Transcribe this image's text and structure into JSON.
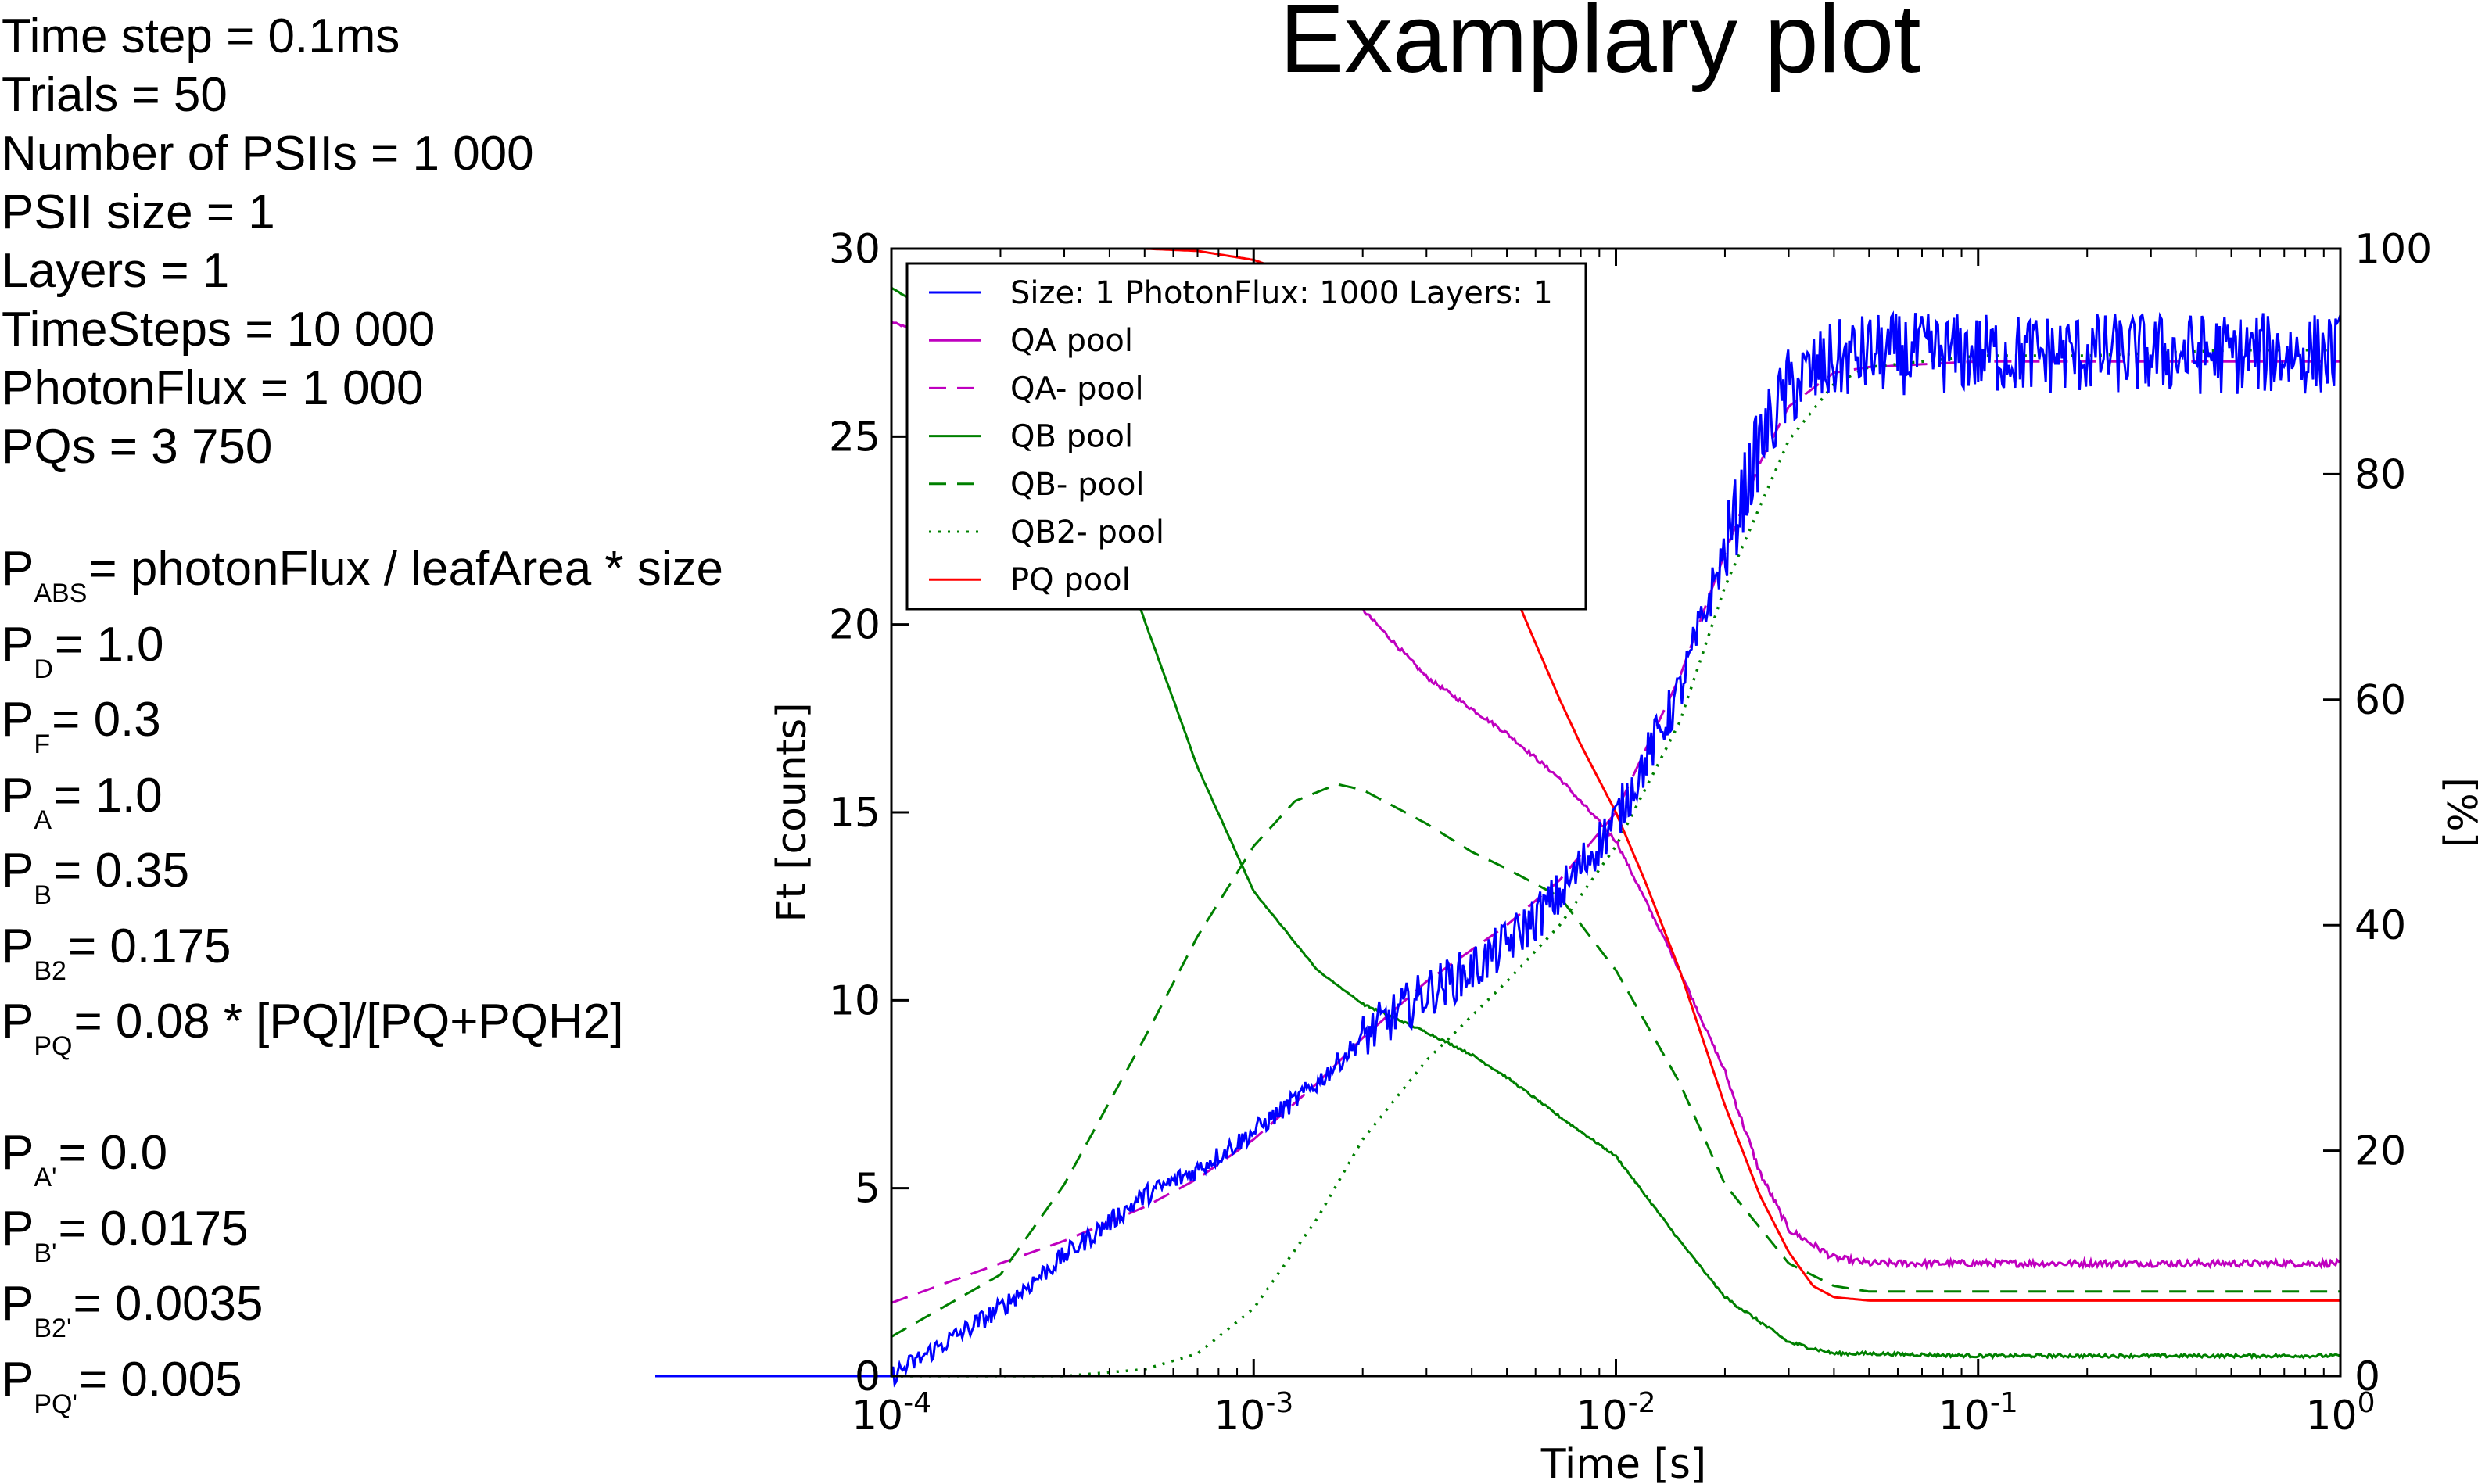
{
  "params": {
    "simulation": [
      "Time step = 0.1ms",
      "Trials = 50",
      "Number of PSIIs = 1 000",
      "PSII size = 1",
      "Layers = 1",
      "TimeSteps = 10 000",
      "PhotonFlux = 1 000",
      "PQs = 3 750"
    ],
    "probabilities": [
      {
        "sym": "P",
        "sub": "ABS",
        "expr": "= photonFlux / leafArea * size"
      },
      {
        "sym": "P",
        "sub": "D",
        "expr": "= 1.0"
      },
      {
        "sym": "P",
        "sub": "F",
        "expr": "= 0.3"
      },
      {
        "sym": "P",
        "sub": "A",
        "expr": "= 1.0"
      },
      {
        "sym": "P",
        "sub": "B",
        "expr": "= 0.35"
      },
      {
        "sym": "P",
        "sub": "B2",
        "expr": "= 0.175"
      },
      {
        "sym": "P",
        "sub": "PQ",
        "expr": "= 0.08 * [PQ]/[PQ+PQH2]"
      }
    ],
    "reverse_probabilities": [
      {
        "sym": "P",
        "sub": "A'",
        "expr": "= 0.0"
      },
      {
        "sym": "P",
        "sub": "B'",
        "expr": "= 0.0175"
      },
      {
        "sym": "P",
        "sub": "B2'",
        "expr": "= 0.0035"
      },
      {
        "sym": "P",
        "sub": "PQ'",
        "expr": "= 0.005"
      }
    ]
  },
  "chart_data": {
    "type": "line",
    "title": "Examplary plot",
    "xlabel": "Time [s]",
    "ylabel": "Ft [counts]",
    "y2label": "[%]",
    "xscale": "log",
    "xlim": [
      0.0001,
      1
    ],
    "ylim": [
      0,
      30
    ],
    "y2lim": [
      0,
      100
    ],
    "x_ticks": [
      {
        "base": "10",
        "exp": "-4"
      },
      {
        "base": "10",
        "exp": "-3"
      },
      {
        "base": "10",
        "exp": "-2"
      },
      {
        "base": "10",
        "exp": "-1"
      },
      {
        "base": "10",
        "exp": "0"
      }
    ],
    "y_ticks": [
      "0",
      "5",
      "10",
      "15",
      "20",
      "25",
      "30"
    ],
    "y2_ticks": [
      "0",
      "20",
      "40",
      "60",
      "80",
      "100"
    ],
    "legend_position": "top-left",
    "series": [
      {
        "name": "Size: 1 PhotonFlux: 1000 Layers: 1",
        "axis": "left",
        "color": "#0000ff",
        "style": "solid",
        "noise": 1.1,
        "x": [
          0.0001,
          0.0002,
          0.0003,
          0.0005,
          0.0007,
          0.001,
          0.0015,
          0.002,
          0.003,
          0.004,
          0.005,
          0.007,
          0.01,
          0.015,
          0.02,
          0.025,
          0.03,
          0.04,
          0.05,
          0.1,
          0.2,
          0.5,
          1.0
        ],
        "y": [
          0.0,
          1.8,
          3.2,
          4.8,
          5.5,
          6.5,
          7.8,
          9.0,
          10.2,
          10.8,
          11.5,
          12.8,
          14.8,
          18.2,
          22.0,
          24.8,
          26.3,
          27.0,
          27.2,
          27.2,
          27.2,
          27.2,
          27.2
        ]
      },
      {
        "name": "QA pool",
        "axis": "right",
        "color": "#bf00bf",
        "style": "solid",
        "noise": 0.3,
        "x": [
          0.0001,
          0.0002,
          0.0003,
          0.0005,
          0.0007,
          0.001,
          0.0015,
          0.002,
          0.003,
          0.005,
          0.007,
          0.01,
          0.015,
          0.02,
          0.025,
          0.03,
          0.04,
          0.05,
          0.1,
          0.2,
          0.5,
          1.0
        ],
        "y": [
          93.5,
          90.0,
          88.0,
          85.0,
          82.5,
          79.0,
          73.0,
          68.0,
          62.0,
          57.0,
          53.0,
          47.5,
          36.0,
          27.0,
          18.0,
          13.0,
          10.5,
          10.0,
          10.0,
          10.0,
          10.0,
          10.0
        ]
      },
      {
        "name": "QA- pool",
        "axis": "right",
        "color": "#bf00bf",
        "style": "dashed",
        "x": [
          0.0001,
          0.0002,
          0.0003,
          0.0005,
          0.0007,
          0.001,
          0.0015,
          0.002,
          0.003,
          0.005,
          0.007,
          0.01,
          0.015,
          0.02,
          0.025,
          0.03,
          0.04,
          0.05,
          0.1,
          0.2,
          0.5,
          1.0
        ],
        "y": [
          6.5,
          10.0,
          12.0,
          15.0,
          17.5,
          21.0,
          26.0,
          30.0,
          35.0,
          40.0,
          44.0,
          50.0,
          62.0,
          73.0,
          81.0,
          86.0,
          89.0,
          89.5,
          90.0,
          90.0,
          90.0,
          90.0
        ]
      },
      {
        "name": "QB pool",
        "axis": "right",
        "color": "#008000",
        "style": "solid",
        "noise": 0.15,
        "x": [
          0.0001,
          0.0002,
          0.0003,
          0.0004,
          0.0005,
          0.0006,
          0.0007,
          0.001,
          0.0015,
          0.002,
          0.003,
          0.004,
          0.005,
          0.007,
          0.01,
          0.015,
          0.02,
          0.03,
          0.04,
          0.05,
          0.1,
          0.2,
          0.5,
          1.0
        ],
        "y": [
          96.5,
          91.0,
          84.0,
          76.0,
          67.0,
          60.0,
          54.0,
          43.0,
          36.0,
          33.0,
          30.5,
          28.5,
          26.5,
          23.0,
          19.5,
          12.0,
          7.0,
          3.0,
          2.0,
          2.0,
          1.8,
          1.8,
          1.8,
          1.8
        ]
      },
      {
        "name": "QB- pool",
        "axis": "right",
        "color": "#008000",
        "style": "dashed",
        "x": [
          0.0001,
          0.0002,
          0.0003,
          0.0005,
          0.0007,
          0.001,
          0.0013,
          0.0017,
          0.002,
          0.003,
          0.004,
          0.005,
          0.007,
          0.01,
          0.015,
          0.02,
          0.03,
          0.04,
          0.05,
          0.1,
          0.2,
          0.5,
          1.0
        ],
        "y": [
          3.5,
          9.0,
          17.0,
          30.0,
          39.0,
          47.0,
          51.0,
          52.5,
          52.0,
          49.0,
          46.5,
          45.0,
          42.5,
          36.0,
          26.0,
          17.0,
          10.0,
          8.0,
          7.5,
          7.5,
          7.5,
          7.5,
          7.5
        ]
      },
      {
        "name": "QB2- pool",
        "axis": "right",
        "color": "#008000",
        "style": "dotted",
        "x": [
          0.0001,
          0.0003,
          0.0005,
          0.0007,
          0.001,
          0.0015,
          0.002,
          0.003,
          0.005,
          0.007,
          0.01,
          0.015,
          0.02,
          0.03,
          0.04,
          0.05,
          0.1,
          0.2,
          0.5,
          1.0
        ],
        "y": [
          0.0,
          0.0,
          0.6,
          2.0,
          6.0,
          14.0,
          21.0,
          28.0,
          35.0,
          40.0,
          47.0,
          58.0,
          70.0,
          83.0,
          88.0,
          89.5,
          90.5,
          90.5,
          91.0,
          91.0
        ]
      },
      {
        "name": "PQ pool",
        "axis": "right",
        "color": "#ff0000",
        "style": "solid",
        "x": [
          0.0001,
          0.0003,
          0.0005,
          0.0007,
          0.001,
          0.0015,
          0.002,
          0.003,
          0.004,
          0.005,
          0.006,
          0.007,
          0.008,
          0.01,
          0.012,
          0.015,
          0.02,
          0.025,
          0.03,
          0.035,
          0.04,
          0.05,
          0.1,
          0.2,
          0.5,
          1.0
        ],
        "y": [
          100.0,
          100.0,
          100.0,
          99.8,
          99.0,
          97.0,
          94.0,
          86.0,
          78.0,
          71.0,
          65.0,
          60.0,
          56.0,
          50.0,
          44.0,
          36.0,
          24.0,
          16.0,
          11.0,
          8.0,
          7.0,
          6.7,
          6.7,
          6.7,
          6.7,
          6.7
        ]
      }
    ]
  }
}
